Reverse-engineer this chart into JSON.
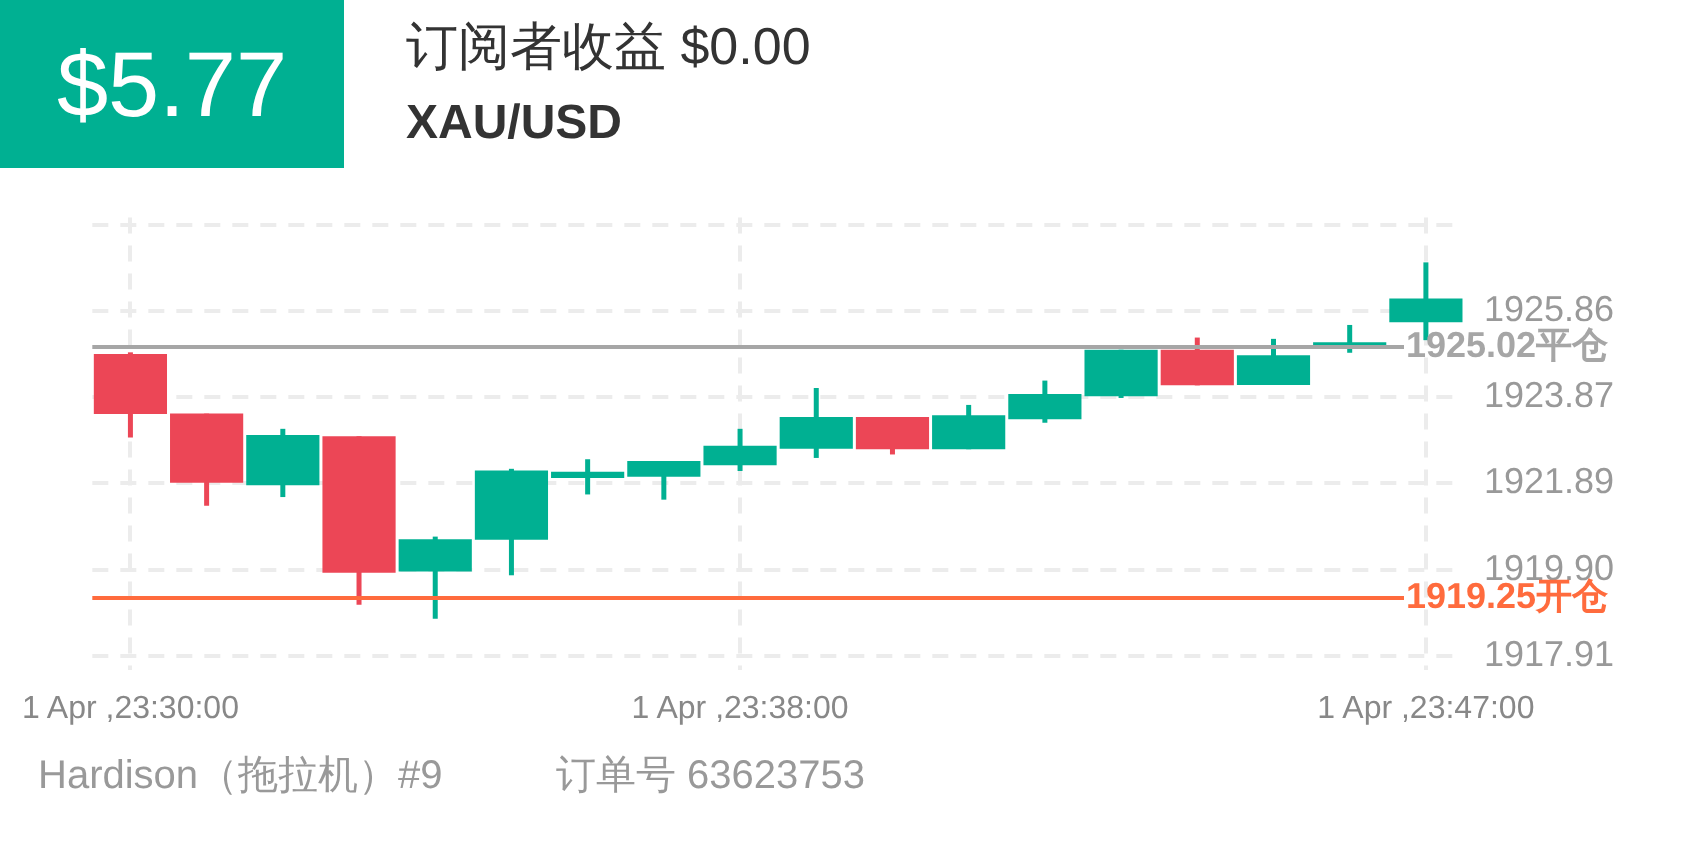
{
  "chart_data": {
    "type": "candlestick",
    "title": "订阅者收益 $0.00",
    "subtitle": "XAU/USD",
    "annotations": [
      "$5.77",
      "Hardison（拖拉机）#9",
      "订单号 63623753"
    ],
    "categories": [
      "1 Apr ,23:30:00",
      null,
      null,
      null,
      null,
      null,
      null,
      null,
      "1 Apr ,23:38:00",
      null,
      null,
      null,
      null,
      null,
      null,
      null,
      null,
      "1 Apr ,23:47:00"
    ],
    "ohlc": [
      [
        1924.86,
        1924.9,
        1922.94,
        1923.48
      ],
      [
        1923.49,
        1923.49,
        1921.37,
        1921.9
      ],
      [
        1921.84,
        1923.14,
        1921.57,
        1923.0
      ],
      [
        1922.97,
        1922.97,
        1919.09,
        1919.83
      ],
      [
        1919.86,
        1920.66,
        1918.77,
        1920.6
      ],
      [
        1920.59,
        1922.22,
        1919.77,
        1922.18
      ],
      [
        1922.01,
        1922.44,
        1921.63,
        1922.15
      ],
      [
        1922.04,
        1922.4,
        1921.51,
        1922.4
      ],
      [
        1922.3,
        1923.14,
        1922.17,
        1922.75
      ],
      [
        1922.68,
        1924.08,
        1922.47,
        1923.41
      ],
      [
        1923.41,
        1923.41,
        1922.55,
        1922.67
      ],
      [
        1922.67,
        1923.69,
        1922.67,
        1923.45
      ],
      [
        1923.36,
        1924.25,
        1923.28,
        1923.94
      ],
      [
        1923.89,
        1924.96,
        1923.85,
        1924.96
      ],
      [
        1924.96,
        1925.24,
        1924.14,
        1924.14
      ],
      [
        1924.15,
        1925.21,
        1924.15,
        1924.83
      ],
      [
        1924.99,
        1925.53,
        1924.89,
        1925.13
      ],
      [
        1925.59,
        1926.97,
        1925.18,
        1926.14
      ]
    ],
    "colors": [
      "#ec4656",
      "#ec4656",
      "#00b092",
      "#ec4656",
      "#00b092",
      "#00b092",
      "#00b092",
      "#00b092",
      "#00b092",
      "#00b092",
      "#ec4656",
      "#00b092",
      "#00b092",
      "#00b092",
      "#ec4656",
      "#00b092",
      "#00b092",
      "#00b092"
    ],
    "ylim": [
      1917.6,
      1928
    ],
    "yticks": [
      {
        "value": 1917.91,
        "label": "1917.91"
      },
      {
        "value": 1919.9,
        "label": "1919.90"
      },
      1921.89,
      1923.87,
      1925.86,
      {
        "value": 1927.84,
        "label": null
      }
    ],
    "ref_lines": [
      {
        "axis": "y",
        "value": 1925.02,
        "label": "1925.02平仓",
        "color": "#a6a6a6"
      },
      {
        "axis": "y",
        "value": 1919.25,
        "label": "1919.25开仓",
        "color": "#ff6b3d"
      }
    ],
    "grid": true
  }
}
